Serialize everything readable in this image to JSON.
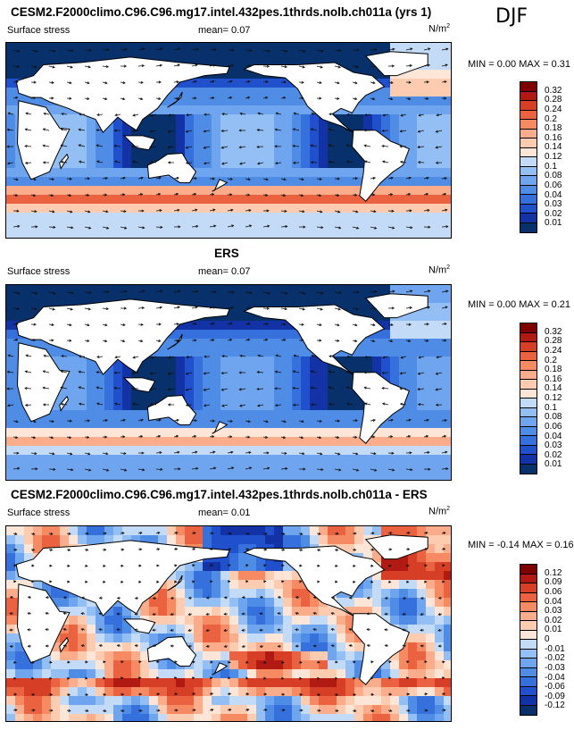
{
  "season": "DJF",
  "units_label": "N/m",
  "units_sup": "2",
  "colors": [
    "#08306b",
    "#1232a6",
    "#2050cc",
    "#3570dd",
    "#4f8ce6",
    "#6fa5ee",
    "#93bff4",
    "#c4dbf8",
    "#fde6d8",
    "#fccbb0",
    "#fbac8a",
    "#f58a63",
    "#ea6240",
    "#d63f25",
    "#b01a12",
    "#7f0000"
  ],
  "chart_data": [
    {
      "type": "heatmap",
      "title": "CESM2.F2000climo.C96.C96.mg17.intel.432pes.1thrds.nolb.ch011a (yrs 1)",
      "variable": "Surface stress",
      "mean_label": "mean=",
      "mean": "0.07",
      "min_label": "MIN =",
      "min": "0.00",
      "max_label": "MAX =",
      "max": "0.31",
      "colorbar_levels": [
        "0.32",
        "0.28",
        "0.24",
        "0.2",
        "0.18",
        "0.16",
        "0.14",
        "0.12",
        "0.1",
        "0.08",
        "0.06",
        "0.04",
        "0.03",
        "0.02",
        "0.01"
      ]
    },
    {
      "type": "heatmap",
      "title": "ERS",
      "variable": "Surface stress",
      "mean_label": "mean=",
      "mean": "0.07",
      "min_label": "MIN =",
      "min": "0.00",
      "max_label": "MAX =",
      "max": "0.21",
      "colorbar_levels": [
        "0.32",
        "0.28",
        "0.24",
        "0.2",
        "0.18",
        "0.16",
        "0.14",
        "0.12",
        "0.1",
        "0.08",
        "0.06",
        "0.04",
        "0.03",
        "0.02",
        "0.01"
      ]
    },
    {
      "type": "heatmap",
      "title": "CESM2.F2000climo.C96.C96.mg17.intel.432pes.1thrds.nolb.ch011a - ERS",
      "variable": "Surface stress",
      "mean_label": "mean=",
      "mean": "0.01",
      "min_label": "MIN =",
      "min": "-0.14",
      "max_label": "MAX =",
      "max": "0.16",
      "colorbar_levels": [
        "0.12",
        "0.09",
        "0.06",
        "0.04",
        "0.03",
        "0.02",
        "0.01",
        "0",
        "-0.01",
        "-0.02",
        "-0.03",
        "-0.04",
        "-0.06",
        "-0.09",
        "-0.12"
      ]
    }
  ]
}
